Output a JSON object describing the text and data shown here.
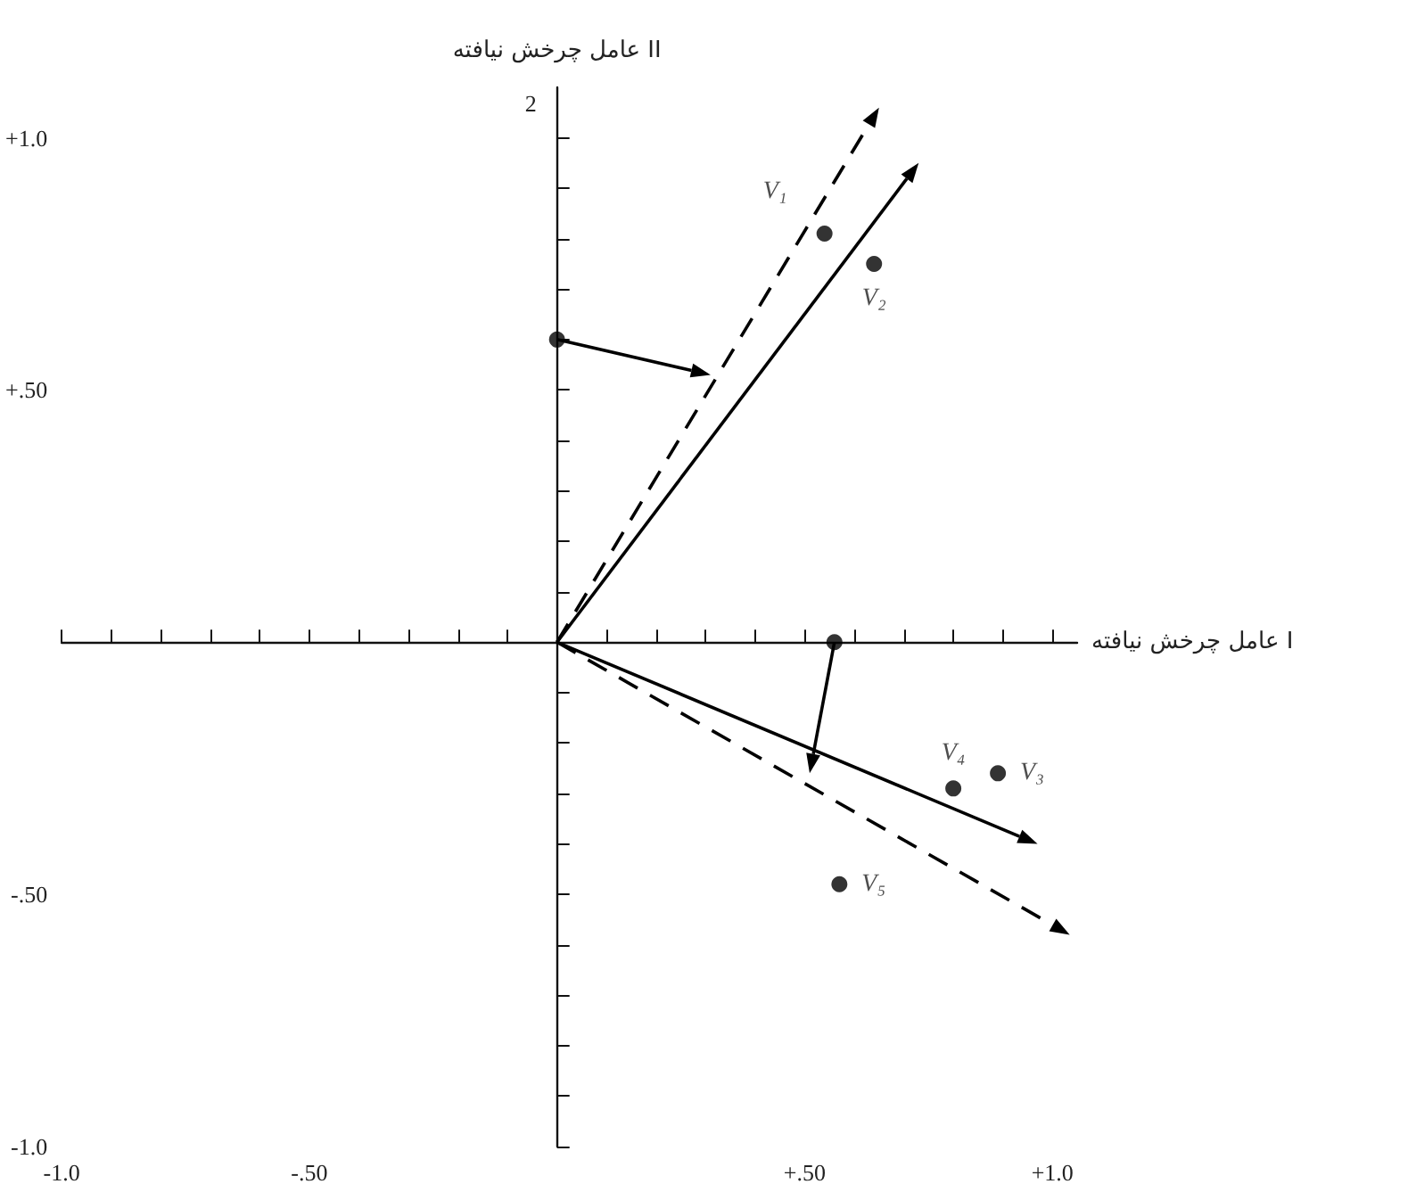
{
  "chart_data": {
    "type": "scatter",
    "xlabel": "عامل چرخش نیافته I",
    "ylabel": "عامل چرخش نیافته II",
    "annotations": [
      "2"
    ],
    "xlim": [
      -1.0,
      1.05
    ],
    "ylim": [
      -1.0,
      1.1
    ],
    "xticks": [
      {
        "value": -1.0,
        "label": "-1.0"
      },
      {
        "value": -0.9,
        "label": null
      },
      {
        "value": -0.8,
        "label": null
      },
      {
        "value": -0.7,
        "label": null
      },
      {
        "value": -0.6,
        "label": null
      },
      {
        "value": -0.5,
        "label": "-.50"
      },
      {
        "value": -0.4,
        "label": null
      },
      {
        "value": -0.3,
        "label": null
      },
      {
        "value": -0.2,
        "label": null
      },
      {
        "value": -0.1,
        "label": null
      },
      {
        "value": 0.1,
        "label": null
      },
      {
        "value": 0.2,
        "label": null
      },
      {
        "value": 0.3,
        "label": null
      },
      {
        "value": 0.4,
        "label": null
      },
      {
        "value": 0.5,
        "label": "+.50"
      },
      {
        "value": 0.6,
        "label": null
      },
      {
        "value": 0.7,
        "label": null
      },
      {
        "value": 0.8,
        "label": null
      },
      {
        "value": 0.9,
        "label": null
      },
      {
        "value": 1.0,
        "label": "+1.0"
      }
    ],
    "yticks": [
      {
        "value": -1.0,
        "label": "-1.0"
      },
      {
        "value": -0.9,
        "label": null
      },
      {
        "value": -0.8,
        "label": null
      },
      {
        "value": -0.7,
        "label": null
      },
      {
        "value": -0.6,
        "label": null
      },
      {
        "value": -0.5,
        "label": "-.50"
      },
      {
        "value": -0.4,
        "label": null
      },
      {
        "value": -0.3,
        "label": null
      },
      {
        "value": -0.2,
        "label": null
      },
      {
        "value": -0.1,
        "label": null
      },
      {
        "value": 0.1,
        "label": null
      },
      {
        "value": 0.2,
        "label": null
      },
      {
        "value": 0.3,
        "label": null
      },
      {
        "value": 0.4,
        "label": null
      },
      {
        "value": 0.5,
        "label": "+.50"
      },
      {
        "value": 0.6,
        "label": null
      },
      {
        "value": 0.7,
        "label": null
      },
      {
        "value": 0.8,
        "label": null
      },
      {
        "value": 0.9,
        "label": null
      },
      {
        "value": 1.0,
        "label": "+1.0"
      }
    ],
    "grid": false,
    "series": [
      {
        "color": "#000000",
        "marker": "circle",
        "x": [
          0.54,
          0.64,
          0,
          0.56,
          0.8,
          0.89,
          0.57
        ],
        "values": [
          0.81,
          0.75,
          0.6,
          0,
          -0.29,
          -0.26,
          -0.48
        ],
        "value_labels": [
          "V₁",
          "V₂",
          null,
          null,
          "V₄",
          "V₃",
          "V₅"
        ]
      }
    ]
  }
}
